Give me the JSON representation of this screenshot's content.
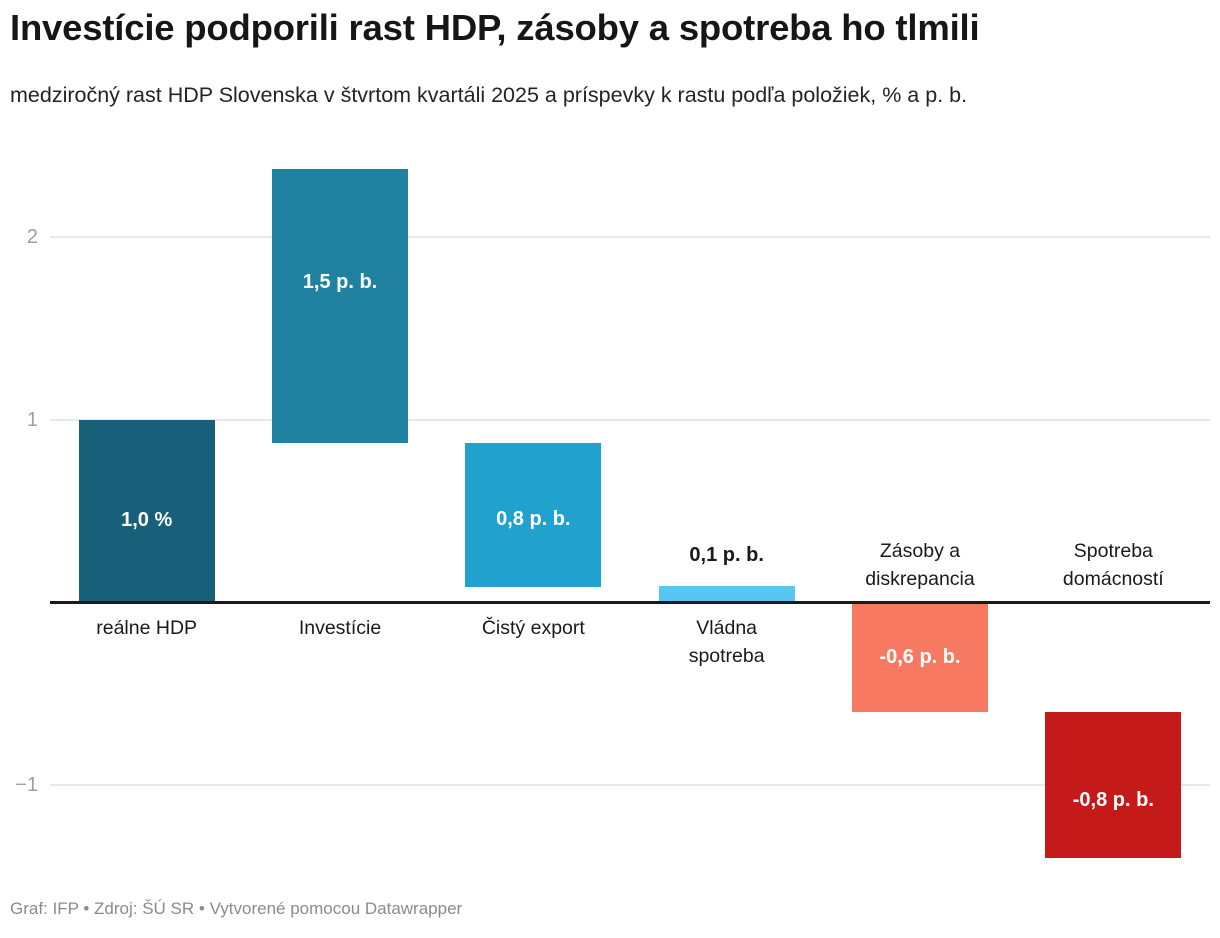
{
  "header": {
    "title": "Investície podporili rast HDP, zásoby a spotreba ho tlmili",
    "subtitle": "medziročný rast HDP Slovenska v štvrtom kvartáli 2025 a príspevky k rastu podľa položiek, % a p. b."
  },
  "footer": {
    "text": "Graf: IFP • Zdroj: ŠÚ SR • Vytvorené pomocou Datawrapper"
  },
  "chart_data": {
    "type": "bar",
    "subtype": "waterfall-column",
    "title": "Investície podporili rast HDP, zásoby a spotreba ho tlmili",
    "subtitle": "medziročný rast HDP Slovenska v štvrtom kvartáli 2025 a príspevky k rastu podľa položiek, % a p. b.",
    "categories": [
      "reálne HDP",
      "Investície",
      "Čistý export",
      "Vládna spotreba",
      "Zásoby a diskrepancia",
      "Spotreba domácností"
    ],
    "values": [
      1.0,
      1.5,
      0.8,
      0.1,
      -0.6,
      -0.8
    ],
    "bars": [
      {
        "category": "reálne HDP",
        "category_display": "reálne HDP",
        "category_label_position": "below",
        "value": 1.0,
        "value_label": "1,0 %",
        "value_label_placement": "inside",
        "label_dy": 10,
        "start": 0,
        "end": 1.0,
        "color": "#185f79"
      },
      {
        "category": "Investície",
        "category_display": "Investície",
        "category_label_position": "below",
        "value": 1.5,
        "value_label": "1,5 p. b.",
        "value_label_placement": "inside",
        "label_dy": -24,
        "start": 0.87,
        "end": 2.37,
        "color": "#2082a0"
      },
      {
        "category": "Čistý export",
        "category_display": "Čistý export",
        "category_label_position": "below",
        "value": 0.8,
        "value_label": "0,8 p. b.",
        "value_label_placement": "inside",
        "label_dy": 4,
        "start": 0.08,
        "end": 0.87,
        "color": "#21a1ce"
      },
      {
        "category": "Vládna spotreba",
        "category_display": "Vládna\nspotreba",
        "category_label_position": "below",
        "value": 0.1,
        "value_label": "0,1 p. b.",
        "value_label_placement": "above",
        "label_dy": 0,
        "start": 0,
        "end": 0.09,
        "color": "#58c5f3"
      },
      {
        "category": "Zásoby a diskrepancia",
        "category_display": "Zásoby a\ndiskrepancia",
        "category_label_position": "above",
        "value": -0.6,
        "value_label": "-0,6 p. b.",
        "value_label_placement": "inside",
        "label_dy": 0,
        "start": -0.6,
        "end": 0,
        "color": "#f87961"
      },
      {
        "category": "Spotreba domácností",
        "category_display": "Spotreba\ndomácností",
        "category_label_position": "above",
        "value": -0.8,
        "value_label": "-0,8 p. b.",
        "value_label_placement": "inside",
        "label_dy": 16,
        "start": -1.4,
        "end": -0.6,
        "color": "#c41a1a"
      }
    ],
    "y_axis": {
      "ticks": [
        {
          "value": 2,
          "label": "2"
        },
        {
          "value": 1,
          "label": "1"
        },
        {
          "value": -1,
          "label": "−1"
        }
      ],
      "ylim": [
        -1.55,
        2.45
      ],
      "baseline_value": 0,
      "grid": true,
      "unit_text": "% a p. b."
    },
    "legend": null,
    "colors": {
      "in_bar_label": "#ffffff",
      "outside_label": "#1a1a1a",
      "gridline": "#e8e8e8",
      "baseline": "#1a1a1a",
      "axis_label": "#9e9e9e"
    }
  }
}
